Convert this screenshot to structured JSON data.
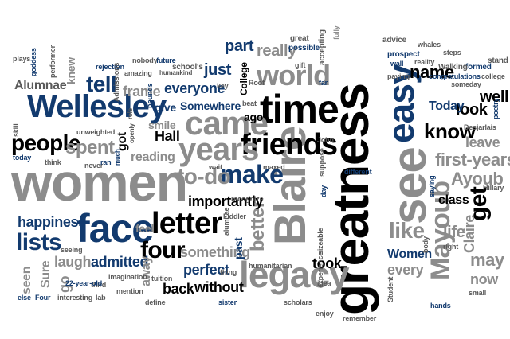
{
  "colors": {
    "black": "#000000",
    "navy": "#123a6e",
    "blue": "#2a5d9c",
    "gray": "#8c8c8c",
    "dark_gray": "#5a5a5a"
  },
  "words": {
    "greatness": "greatness",
    "women": "women",
    "time": "time",
    "wellesley": "Wellesley",
    "see": "see",
    "blaire": "Blaire",
    "face": "face",
    "legacy": "legacy",
    "friends": "friends",
    "came": "came",
    "years": "years",
    "easy": "easy",
    "world": "world",
    "make": "make",
    "letter": "letter",
    "mayoub": "Mayoub",
    "people": "people",
    "four": "four",
    "to_do": "to-do",
    "tell": "tell",
    "lists": "lists",
    "know": "know",
    "get": "get",
    "like": "like",
    "happiness": "happiness",
    "spent": "spent",
    "first_years": "first-years",
    "ayoub": "Ayoub",
    "better": "better",
    "importantly": "importantly",
    "everyone": "everyone",
    "name": "name",
    "well": "well",
    "look": "look",
    "today": "Today",
    "women_small": "Women",
    "perfect": "perfect",
    "admitted": "admitted",
    "laugh": "laugh",
    "something": "something",
    "back": "back",
    "without": "without",
    "really": "really",
    "part": "part",
    "just": "just",
    "took": "took",
    "life": "life",
    "claire": "Claire",
    "every": "every",
    "may": "may",
    "now": "now",
    "leave": "leave",
    "class": "class",
    "go": "go",
    "seen": "seen",
    "sure": "Sure",
    "hall": "Hall",
    "alumnae": "Alumnae",
    "frame": "frame",
    "give": "give",
    "somewhere": "Somewhere",
    "ago": "ago",
    "college": "College",
    "feel": "feel",
    "reading": "reading",
    "smile": "smile",
    "knew": "knew",
    "got": "got",
    "away": "away",
    "past": "past",
    "great": "great",
    "possible": "possible",
    "accepting": "accepting",
    "fully": "fully",
    "advice": "advice",
    "whales": "whales",
    "steps": "steps",
    "stand": "stand",
    "formed": "formed",
    "college2": "college",
    "someday": "someday",
    "walking": "Walking",
    "congratulations": "congratulations",
    "paying": "paying",
    "reality": "reality",
    "prospect": "prospect",
    "wall": "wall",
    "far": "far",
    "gift": "gift",
    "roof": "Roof",
    "beat": "beat",
    "key": "key",
    "future": "future",
    "schools": "school's",
    "humankind": "humankind",
    "nobody": "nobody",
    "rejection": "rejection",
    "amazing": "amazing",
    "plays": "plays",
    "goddess": "goddess",
    "performer": "performer",
    "admissions": "Admissions",
    "bounds": "bounds",
    "openly": "openly",
    "role": "role",
    "much": "much",
    "unweighted": "unweighted",
    "skill": "skill",
    "today2": "today",
    "think": "think",
    "never": "never",
    "ran": "ran",
    "wait": "wait",
    "maxed": "maxed",
    "john": "John",
    "suppose": "suppose",
    "different": "different",
    "recognize": "recognize",
    "alumnae2": "alumnae",
    "fiddler": "Fiddler",
    "day": "day",
    "desjarlais": "Desjarlais",
    "hillary": "Hillary",
    "poetry": "poetry",
    "saying": "saying",
    "body": "body",
    "right": "right",
    "small": "small",
    "hands": "hands",
    "student": "Student",
    "remember": "remember",
    "enjoy": "enjoy",
    "scholars": "scholars",
    "sister": "sister",
    "idea": "idea",
    "humanitarian": "humanitarian",
    "sizeable": "sizeable",
    "experience": "experience",
    "thing": "thing",
    "tuition": "tuition",
    "define": "define",
    "mention": "mention",
    "imagination": "imagination",
    "third": "third",
    "interesting": "interesting",
    "22_year_old": "22-year-old",
    "else": "else",
    "four2": "Four",
    "lab": "lab",
    "seeing": "seeing"
  }
}
